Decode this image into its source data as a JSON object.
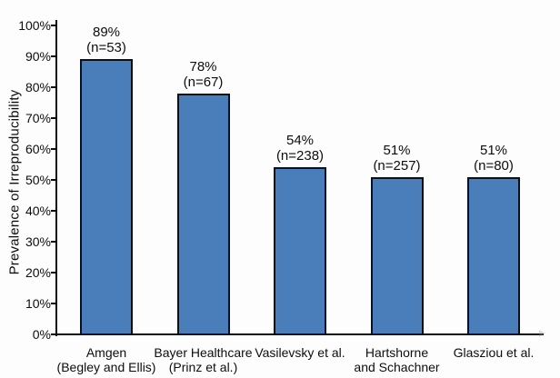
{
  "chart_data": {
    "type": "bar",
    "title": "",
    "xlabel": "",
    "ylabel": "Prevalence of Irreproducibility",
    "ylim": [
      0,
      100
    ],
    "ytick_step": 10,
    "y_tick_labels": [
      "0%",
      "10%",
      "20%",
      "30%",
      "40%",
      "50%",
      "60%",
      "70%",
      "80%",
      "90%",
      "100%"
    ],
    "grid": false,
    "legend": null,
    "categories": [
      "Amgen (Begley and Ellis)",
      "Bayer Healthcare (Prinz et al.)",
      "Vasilevsky et al.",
      "Hartshorne and Schachner",
      "Glasziou et al."
    ],
    "values": [
      89,
      78,
      54,
      51,
      51
    ],
    "sample_sizes": [
      53,
      67,
      238,
      257,
      80
    ],
    "bars": [
      {
        "value": 89,
        "label_lines": [
          "89%",
          "(n=53)"
        ],
        "category_lines": [
          "Amgen",
          "(Begley and Ellis)"
        ]
      },
      {
        "value": 78,
        "label_lines": [
          "78%",
          "(n=67)"
        ],
        "category_lines": [
          "Bayer Healthcare",
          "(Prinz et al.)"
        ]
      },
      {
        "value": 54,
        "label_lines": [
          "54%",
          "(n=238)"
        ],
        "category_lines": [
          "Vasilevsky et al."
        ]
      },
      {
        "value": 51,
        "label_lines": [
          "51%",
          "(n=257)"
        ],
        "category_lines": [
          "Hartshorne",
          "and Schachner"
        ]
      },
      {
        "value": 51,
        "label_lines": [
          "51%",
          "(n=80)"
        ],
        "category_lines": [
          "Glasziou et al."
        ]
      }
    ],
    "colors": {
      "bar_fill": "#4a7ebb",
      "bar_border": "#0b0f1a",
      "axis": "#0d0d0d",
      "text": "#0d0d0d"
    }
  }
}
